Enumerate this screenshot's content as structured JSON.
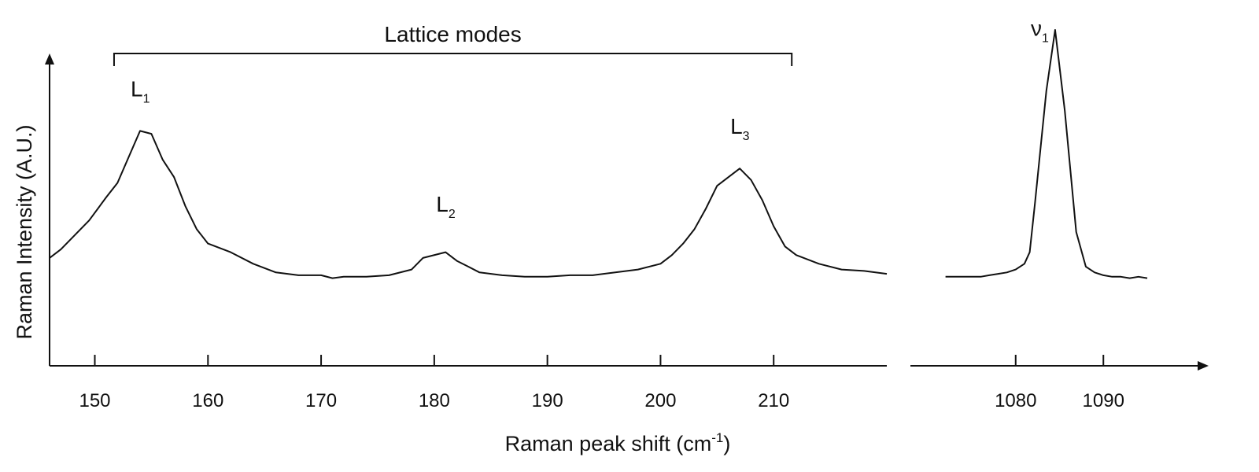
{
  "chart_data": {
    "type": "line",
    "xlabel": "Raman peak shift (cm",
    "xlabel_sup": "-1",
    "xlabel_tail": ")",
    "ylabel": "Raman Intensity (A.U.)",
    "broken_x_axis": true,
    "grid": false,
    "y_ticks_shown": false,
    "y_range": [
      0,
      1
    ],
    "panels": [
      {
        "xlim": [
          146,
          220
        ],
        "ticks": [
          150,
          160,
          170,
          180,
          190,
          200,
          210
        ],
        "tick_labels": [
          "150",
          "160",
          "170",
          "180",
          "190",
          "200",
          "210"
        ],
        "series": {
          "x": [
            146,
            147,
            148,
            149.5,
            151,
            152,
            153,
            154,
            155,
            156,
            157,
            158,
            159,
            160,
            162,
            164,
            166,
            168,
            170,
            171,
            172,
            174,
            176,
            178,
            179,
            181,
            182,
            183,
            184,
            186,
            188,
            190,
            192,
            194,
            196,
            198,
            200,
            201,
            202,
            203,
            204,
            205,
            206,
            207,
            208,
            209,
            210,
            211,
            212,
            214,
            216,
            218,
            220
          ],
          "y": [
            0.21,
            0.24,
            0.28,
            0.34,
            0.42,
            0.47,
            0.56,
            0.65,
            0.64,
            0.55,
            0.49,
            0.39,
            0.31,
            0.26,
            0.23,
            0.19,
            0.16,
            0.15,
            0.15,
            0.14,
            0.145,
            0.145,
            0.15,
            0.17,
            0.21,
            0.23,
            0.2,
            0.18,
            0.16,
            0.15,
            0.145,
            0.145,
            0.15,
            0.15,
            0.16,
            0.17,
            0.19,
            0.22,
            0.26,
            0.31,
            0.38,
            0.46,
            0.49,
            0.52,
            0.48,
            0.41,
            0.32,
            0.25,
            0.22,
            0.19,
            0.17,
            0.165,
            0.155
          ]
        }
      },
      {
        "xlim": [
          1068,
          1102
        ],
        "ticks": [
          1080,
          1090
        ],
        "tick_labels": [
          "1080",
          "1090"
        ],
        "series": {
          "x": [
            1072,
            1073,
            1074,
            1075,
            1076,
            1077,
            1078,
            1079,
            1080,
            1081,
            1081.6,
            1082.2,
            1083.5,
            1084.5,
            1085.6,
            1086.9,
            1088,
            1089,
            1090,
            1091,
            1092,
            1093,
            1094,
            1095
          ],
          "y": [
            0.145,
            0.145,
            0.145,
            0.145,
            0.145,
            0.15,
            0.155,
            0.16,
            0.17,
            0.19,
            0.23,
            0.4,
            0.79,
            1.0,
            0.72,
            0.3,
            0.18,
            0.16,
            0.15,
            0.145,
            0.145,
            0.14,
            0.145,
            0.14
          ]
        }
      }
    ],
    "annotations": [
      {
        "text": "L",
        "sub": "1",
        "x": 154,
        "y": 0.77,
        "panel": 0
      },
      {
        "text": "L",
        "sub": "2",
        "x": 181,
        "y": 0.37,
        "panel": 0
      },
      {
        "text": "L",
        "sub": "3",
        "x": 207,
        "y": 0.64,
        "panel": 0
      },
      {
        "text": "ν",
        "sub": "1",
        "x": 1082.8,
        "y": 0.98,
        "panel": 1
      }
    ],
    "bracket": {
      "label": "Lattice modes",
      "x_start": 151.7,
      "x_end": 211.6,
      "panel": 0
    }
  }
}
